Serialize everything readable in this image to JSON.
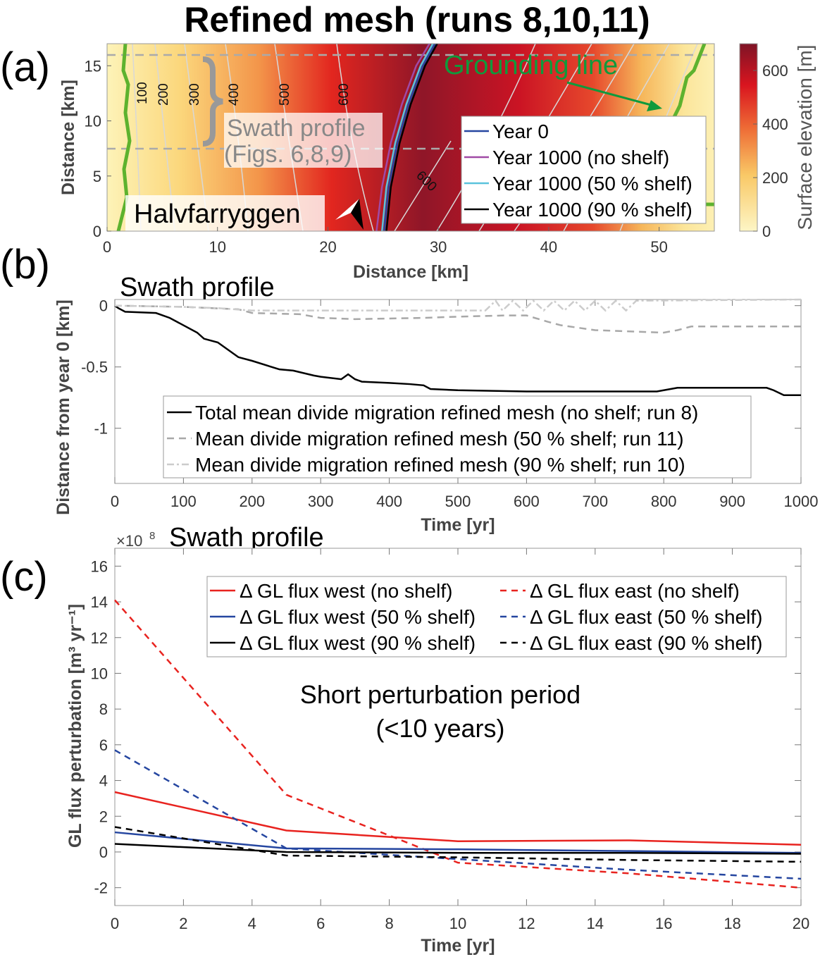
{
  "title": "Refined mesh (runs 8,10,11)",
  "panel_labels": [
    "(a)",
    "(b)",
    "(c)"
  ],
  "map": {
    "annotations": {
      "swath": "Swath profile",
      "figs": "(Figs. 6,8,9)",
      "place": "Halvfarryggen",
      "grounding_line": "Grounding line"
    },
    "contour_labels": [
      "100",
      "200",
      "300",
      "400",
      "500",
      "600",
      "600"
    ],
    "colorbar": {
      "label": "Surface elevation [m]",
      "ticks": [
        "0",
        "200",
        "400",
        "600"
      ],
      "range": [
        0,
        700
      ]
    },
    "colors": {
      "grounding": "#5db22e",
      "arrow": "#0f9a3c"
    }
  },
  "chart_data": [
    {
      "type": "line",
      "panel": "a",
      "xlabel": "Distance [km]",
      "ylabel": "Distance [km]",
      "xlim": [
        0,
        55
      ],
      "ylim": [
        0,
        17
      ],
      "xticks": [
        0,
        10,
        20,
        30,
        40,
        50
      ],
      "yticks": [
        0,
        5,
        10,
        15
      ],
      "legend": {
        "placement": "right",
        "entries": [
          "Year 0",
          "Year 1000 (no shelf)",
          "Year 1000 (50 % shelf)",
          "Year 1000 (90 % shelf)"
        ]
      },
      "series": [
        {
          "name": "Year 0",
          "color": "#2546a0",
          "x": [
            25.1,
            25.5,
            26.3,
            27.3,
            28.6,
            29.7
          ],
          "y": [
            0,
            4,
            8,
            11.5,
            15,
            17
          ]
        },
        {
          "name": "Year 1000 (no shelf)",
          "color": "#a04aa6",
          "x": [
            24.4,
            24.9,
            25.7,
            26.7,
            28,
            29.2
          ],
          "y": [
            0,
            4,
            8,
            11.5,
            15,
            17
          ]
        },
        {
          "name": "Year 1000 (50 % shelf)",
          "color": "#5bc3dd",
          "x": [
            24.9,
            25.3,
            26.1,
            27.1,
            28.4,
            29.5
          ],
          "y": [
            0,
            4,
            8,
            11.5,
            15,
            17
          ]
        },
        {
          "name": "Year 1000 (90 % shelf)",
          "color": "#000000",
          "x": [
            25.3,
            25.7,
            26.5,
            27.5,
            28.8,
            29.9
          ],
          "y": [
            0,
            4,
            8,
            11.5,
            15,
            17
          ]
        }
      ],
      "swath_bounds_km": [
        7.5,
        16
      ]
    },
    {
      "type": "line",
      "panel": "b",
      "title": "Swath profile",
      "xlabel": "Time [yr]",
      "ylabel": "Distance from year 0 [km]",
      "xlim": [
        0,
        1000
      ],
      "ylim": [
        -1.45,
        0.05
      ],
      "xticks": [
        0,
        100,
        200,
        300,
        400,
        500,
        600,
        700,
        800,
        900,
        1000
      ],
      "yticks": [
        0,
        -0.5,
        -1
      ],
      "ytick_labels": [
        "0",
        "-0.5",
        "-1"
      ],
      "legend": {
        "placement": "bottom",
        "entries": [
          "Total mean divide migration refined mesh (no shelf; run 8)",
          "Mean divide migration refined mesh (50 % shelf; run 11)",
          "Mean divide migration refined mesh (90 % shelf; run 10)"
        ]
      },
      "series": [
        {
          "name": "no shelf; run 8",
          "color": "#000000",
          "dash": "",
          "x": [
            0,
            5,
            15,
            60,
            80,
            100,
            120,
            130,
            150,
            180,
            200,
            240,
            260,
            290,
            300,
            330,
            340,
            350,
            360,
            400,
            430,
            450,
            460,
            500,
            600,
            700,
            790,
            800,
            820,
            900,
            950,
            960,
            975,
            1000
          ],
          "y": [
            0,
            -0.02,
            -0.05,
            -0.06,
            -0.1,
            -0.16,
            -0.22,
            -0.27,
            -0.3,
            -0.42,
            -0.45,
            -0.52,
            -0.53,
            -0.57,
            -0.58,
            -0.6,
            -0.56,
            -0.6,
            -0.62,
            -0.63,
            -0.64,
            -0.65,
            -0.68,
            -0.69,
            -0.7,
            -0.7,
            -0.7,
            -0.69,
            -0.67,
            -0.67,
            -0.67,
            -0.69,
            -0.73,
            -0.73
          ]
        },
        {
          "name": "50 % shelf; run 11",
          "color": "#a8a8a8",
          "dash": "10,7",
          "x": [
            0,
            100,
            180,
            200,
            270,
            300,
            350,
            450,
            500,
            570,
            600,
            630,
            650,
            700,
            800,
            820,
            840,
            1000
          ],
          "y": [
            0,
            -0.01,
            -0.03,
            -0.06,
            -0.07,
            -0.1,
            -0.11,
            -0.1,
            -0.09,
            -0.08,
            -0.08,
            -0.13,
            -0.16,
            -0.2,
            -0.22,
            -0.2,
            -0.17,
            -0.17
          ]
        },
        {
          "name": "90 % shelf; run 10",
          "color": "#cccccc",
          "dash": "10,4,3,4",
          "x": [
            0,
            100,
            150,
            200,
            250,
            300,
            400,
            540,
            555,
            565,
            580,
            595,
            610,
            625,
            640,
            655,
            670,
            685,
            700,
            715,
            730,
            745,
            760,
            1000
          ],
          "y": [
            0,
            -0.01,
            -0.02,
            -0.04,
            -0.04,
            -0.04,
            -0.04,
            -0.04,
            0.04,
            -0.04,
            0.04,
            -0.04,
            0.04,
            -0.04,
            0.04,
            -0.04,
            0.04,
            -0.04,
            0.04,
            -0.04,
            0.04,
            -0.04,
            0.04,
            0.05
          ]
        }
      ]
    },
    {
      "type": "line",
      "panel": "c",
      "title": "Swath profile",
      "multiplier": "×10",
      "multiplier_exp": "8",
      "xlabel": "Time [yr]",
      "ylabel": "GL flux perturbation [m³ yr⁻¹]",
      "xlim": [
        0,
        20
      ],
      "ylim": [
        -3,
        17
      ],
      "xticks": [
        0,
        2,
        4,
        6,
        8,
        10,
        12,
        14,
        16,
        18,
        20
      ],
      "yticks": [
        -2,
        0,
        2,
        4,
        6,
        8,
        10,
        12,
        14,
        16
      ],
      "annotation": [
        "Short perturbation period",
        "(<10 years)"
      ],
      "legend": {
        "placement": "top-right",
        "entries": [
          "Δ GL flux west (no shelf)",
          "Δ GL flux east (no shelf)",
          "Δ GL flux west (50 % shelf)",
          "Δ GL flux east (50 % shelf)",
          "Δ GL flux west (90 % shelf)",
          "Δ GL flux east (90 % shelf)"
        ]
      },
      "series": [
        {
          "name": "Δ GL flux west (no shelf)",
          "color": "#e8231f",
          "dash": "",
          "x": [
            0,
            5,
            10,
            15,
            20
          ],
          "y": [
            3.35,
            1.2,
            0.6,
            0.65,
            0.4
          ]
        },
        {
          "name": "Δ GL flux east (no shelf)",
          "color": "#e8231f",
          "dash": "9,7",
          "x": [
            0,
            5,
            10,
            15,
            20
          ],
          "y": [
            14.1,
            3.2,
            -0.6,
            -1.2,
            -2.0
          ]
        },
        {
          "name": "Δ GL flux west (50 % shelf)",
          "color": "#2546a0",
          "dash": "",
          "x": [
            0,
            5,
            10,
            15,
            20
          ],
          "y": [
            1.1,
            0.2,
            0.15,
            0.05,
            -0.05
          ]
        },
        {
          "name": "Δ GL flux east (50 % shelf)",
          "color": "#2546a0",
          "dash": "9,7",
          "x": [
            0,
            5,
            10,
            15,
            20
          ],
          "y": [
            5.7,
            0.2,
            -0.4,
            -1.0,
            -1.5
          ]
        },
        {
          "name": "Δ GL flux west (90 % shelf)",
          "color": "#000000",
          "dash": "",
          "x": [
            0,
            5,
            10,
            15,
            20
          ],
          "y": [
            0.45,
            0.0,
            -0.05,
            -0.05,
            -0.1
          ]
        },
        {
          "name": "Δ GL flux east (90 % shelf)",
          "color": "#000000",
          "dash": "9,7",
          "x": [
            0,
            5,
            10,
            15,
            20
          ],
          "y": [
            1.4,
            -0.2,
            -0.3,
            -0.45,
            -0.55
          ]
        }
      ]
    }
  ]
}
